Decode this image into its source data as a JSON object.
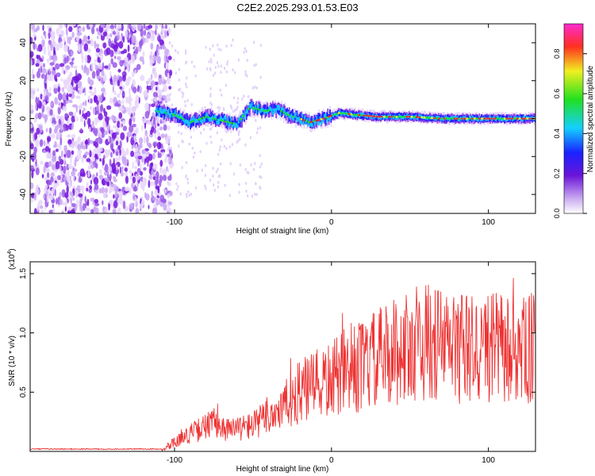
{
  "title": "C2E2.2025.293.01.53.E03",
  "chart_data": [
    {
      "type": "heatmap",
      "xlabel": "Height of straight line (km)",
      "ylabel": "Frequency (Hz)",
      "xlim": [
        -192,
        130
      ],
      "ylim": [
        -50,
        50
      ],
      "xticks": [
        -100,
        0,
        100
      ],
      "yticks": [
        -40,
        -20,
        0,
        20,
        40
      ],
      "grid": false,
      "noise_region_x": [
        -192,
        -105
      ],
      "signal_track": [
        {
          "x": -112,
          "y": 4
        },
        {
          "x": -100,
          "y": 2
        },
        {
          "x": -90,
          "y": -2
        },
        {
          "x": -80,
          "y": 1
        },
        {
          "x": -70,
          "y": -1
        },
        {
          "x": -60,
          "y": -3
        },
        {
          "x": -52,
          "y": 6
        },
        {
          "x": -42,
          "y": 4
        },
        {
          "x": -34,
          "y": 5
        },
        {
          "x": -28,
          "y": 2
        },
        {
          "x": -20,
          "y": 0
        },
        {
          "x": -14,
          "y": -2
        },
        {
          "x": -5,
          "y": 0
        },
        {
          "x": 5,
          "y": 3
        },
        {
          "x": 15,
          "y": 2
        },
        {
          "x": 30,
          "y": 1
        },
        {
          "x": 50,
          "y": 1
        },
        {
          "x": 70,
          "y": 0
        },
        {
          "x": 90,
          "y": 0
        },
        {
          "x": 110,
          "y": 0
        },
        {
          "x": 130,
          "y": 0
        }
      ],
      "colorbar": {
        "label": "Normalized spectral amplitude",
        "range": [
          0,
          0.95
        ],
        "ticks": [
          0.0,
          0.2,
          0.4,
          0.6,
          0.8
        ]
      }
    },
    {
      "type": "line",
      "xlabel": "Height of straight line (km)",
      "ylabel": "SNR (10 * v/v)",
      "y_multiplier_label": "(x10",
      "y_multiplier_exp": "4",
      "y_multiplier_close": ")",
      "xlim": [
        -192,
        130
      ],
      "ylim": [
        0,
        1.6
      ],
      "xticks": [
        -100,
        0,
        100
      ],
      "yticks": [
        0.5,
        1.0,
        1.5
      ],
      "grid": false,
      "color": "#ee3333",
      "series": [
        {
          "name": "SNR",
          "points": [
            {
              "x": -192,
              "y": 0.0
            },
            {
              "x": -110,
              "y": 0.01
            },
            {
              "x": -100,
              "y": 0.08
            },
            {
              "x": -90,
              "y": 0.15
            },
            {
              "x": -75,
              "y": 0.24
            },
            {
              "x": -65,
              "y": 0.18
            },
            {
              "x": -50,
              "y": 0.22
            },
            {
              "x": -40,
              "y": 0.3
            },
            {
              "x": -30,
              "y": 0.38
            },
            {
              "x": -20,
              "y": 0.5
            },
            {
              "x": -10,
              "y": 0.55
            },
            {
              "x": 0,
              "y": 0.6
            },
            {
              "x": 10,
              "y": 0.68
            },
            {
              "x": 20,
              "y": 0.72
            },
            {
              "x": 30,
              "y": 0.78
            },
            {
              "x": 40,
              "y": 0.84
            },
            {
              "x": 50,
              "y": 0.88
            },
            {
              "x": 55,
              "y": 0.95
            },
            {
              "x": 60,
              "y": 0.92
            },
            {
              "x": 70,
              "y": 0.9
            },
            {
              "x": 80,
              "y": 0.88
            },
            {
              "x": 90,
              "y": 0.86
            },
            {
              "x": 100,
              "y": 0.88
            },
            {
              "x": 110,
              "y": 0.86
            },
            {
              "x": 120,
              "y": 0.84
            },
            {
              "x": 130,
              "y": 0.86
            }
          ]
        }
      ]
    }
  ]
}
